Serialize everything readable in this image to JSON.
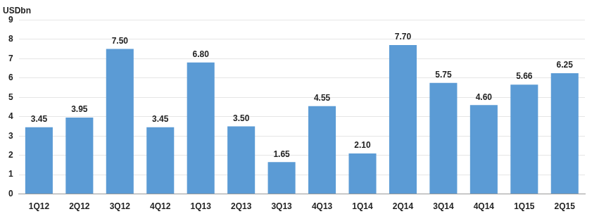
{
  "chart_data": {
    "type": "bar",
    "y_label": "USDbn",
    "categories": [
      "1Q12",
      "2Q12",
      "3Q12",
      "4Q12",
      "1Q13",
      "2Q13",
      "3Q13",
      "4Q13",
      "1Q14",
      "2Q14",
      "3Q14",
      "4Q14",
      "1Q15",
      "2Q15"
    ],
    "values": [
      3.45,
      3.95,
      7.5,
      3.45,
      6.8,
      3.5,
      1.65,
      4.55,
      2.1,
      7.7,
      5.75,
      4.6,
      5.66,
      6.25
    ],
    "value_labels": [
      "3.45",
      "3.95",
      "7.50",
      "3.45",
      "6.80",
      "3.50",
      "1.65",
      "4.55",
      "2.10",
      "7.70",
      "5.75",
      "4.60",
      "5.66",
      "6.25"
    ],
    "color": "#5b9bd5",
    "ylim": [
      0,
      9
    ],
    "yticks": [
      0,
      1,
      2,
      3,
      4,
      5,
      6,
      7,
      8,
      9
    ],
    "grid": true,
    "data_labels": true
  }
}
